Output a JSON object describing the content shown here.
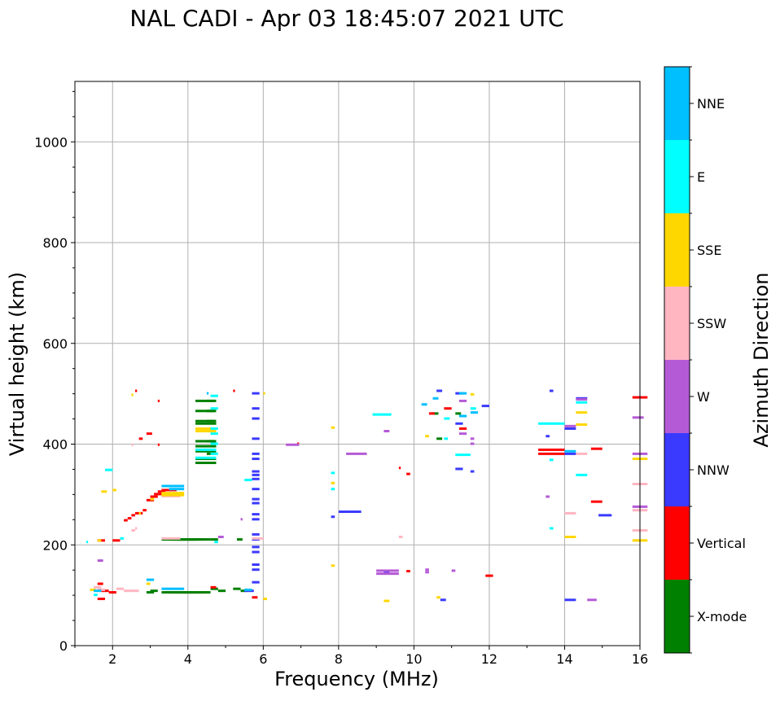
{
  "chart_data": {
    "type": "scatter",
    "title": "NAL CADI - Apr 03 18:45:07 2021 UTC",
    "xlabel": "Frequency (MHz)",
    "ylabel": "Virtual height (km)",
    "xlim": [
      1,
      16
    ],
    "ylim": [
      0,
      1120
    ],
    "xticks": [
      2,
      4,
      6,
      8,
      10,
      12,
      14,
      16
    ],
    "yticks": [
      0,
      200,
      400,
      600,
      800,
      1000
    ],
    "grid": true,
    "colorbar": {
      "label": "Azimuth Direction",
      "categories": [
        "X-mode",
        "Vertical",
        "NNW",
        "W",
        "SSW",
        "SSE",
        "E",
        "NNE"
      ],
      "colors": [
        "#008000",
        "#ff0000",
        "#3a3aff",
        "#b55ad6",
        "#ffb6c1",
        "#ffd700",
        "#00ffff",
        "#00bfff"
      ]
    },
    "series": [
      {
        "name": "X-mode",
        "points": [
          [
            3.3,
            105,
            0.8
          ],
          [
            3.4,
            105,
            0.8
          ],
          [
            3.5,
            105,
            0.8
          ],
          [
            3.6,
            105,
            0.8
          ],
          [
            3.7,
            105,
            0.8
          ],
          [
            3.8,
            105,
            0.8
          ],
          [
            3.3,
            210,
            0.8
          ],
          [
            3.4,
            210,
            0.8
          ],
          [
            3.5,
            210,
            0.8
          ],
          [
            3.6,
            210,
            0.8
          ],
          [
            3.7,
            210,
            0.8
          ],
          [
            3.8,
            210,
            0.8
          ],
          [
            4.2,
            485,
            0.55
          ],
          [
            4.2,
            465,
            0.55
          ],
          [
            4.2,
            445,
            0.55
          ],
          [
            4.2,
            440,
            0.55
          ],
          [
            4.2,
            405,
            0.55
          ],
          [
            4.2,
            395,
            0.55
          ],
          [
            4.2,
            385,
            0.55
          ],
          [
            4.2,
            370,
            0.55
          ],
          [
            4.2,
            362,
            0.55
          ],
          [
            4.5,
            485,
            0.2
          ],
          [
            4.5,
            465,
            0.2
          ],
          [
            4.5,
            445,
            0.2
          ],
          [
            4.5,
            405,
            0.2
          ],
          [
            4.5,
            380,
            0.2
          ],
          [
            4.6,
            112,
            0.2
          ],
          [
            4.6,
            210,
            0.2
          ],
          [
            4.8,
            108,
            0.2
          ],
          [
            5.2,
            112,
            0.2
          ],
          [
            5.4,
            108,
            0.15
          ],
          [
            5.3,
            210,
            0.15
          ],
          [
            2.9,
            105,
            0.2
          ],
          [
            3.0,
            108,
            0.2
          ],
          [
            10.5,
            460,
            0.15
          ],
          [
            10.6,
            410,
            0.15
          ],
          [
            11.1,
            460,
            0.15
          ]
        ]
      },
      {
        "name": "Vertical",
        "points": [
          [
            1.6,
            92,
            0.2
          ],
          [
            1.6,
            122,
            0.15
          ],
          [
            1.7,
            108,
            0.2
          ],
          [
            1.9,
            105,
            0.2
          ],
          [
            2.0,
            208,
            0.2
          ],
          [
            1.6,
            208,
            0.2
          ],
          [
            2.3,
            248,
            0.1
          ],
          [
            2.4,
            252,
            0.1
          ],
          [
            2.5,
            258,
            0.1
          ],
          [
            2.6,
            262,
            0.1
          ],
          [
            2.7,
            262,
            0.1
          ],
          [
            2.8,
            268,
            0.1
          ],
          [
            2.9,
            288,
            0.2
          ],
          [
            3.0,
            295,
            0.2
          ],
          [
            3.1,
            300,
            0.2
          ],
          [
            3.2,
            305,
            0.2
          ],
          [
            3.3,
            308,
            0.4
          ],
          [
            2.9,
            420,
            0.15
          ],
          [
            2.7,
            410,
            0.1
          ],
          [
            3.2,
            485,
            0.05
          ],
          [
            3.2,
            398,
            0.05
          ],
          [
            2.6,
            505,
            0.05
          ],
          [
            4.6,
            115,
            0.15
          ],
          [
            5.2,
            505,
            0.05
          ],
          [
            5.7,
            95,
            0.15
          ],
          [
            6.9,
            400,
            0.05
          ],
          [
            9.6,
            352,
            0.05
          ],
          [
            9.8,
            340,
            0.1
          ],
          [
            9.8,
            147,
            0.1
          ],
          [
            10.4,
            460,
            0.15
          ],
          [
            10.8,
            470,
            0.2
          ],
          [
            11.2,
            430,
            0.2
          ],
          [
            11.9,
            138,
            0.2
          ],
          [
            13.3,
            380,
            0.7
          ],
          [
            13.3,
            388,
            0.7
          ],
          [
            14.7,
            285,
            0.3
          ],
          [
            14.7,
            390,
            0.3
          ],
          [
            15.8,
            492,
            0.4
          ]
        ]
      },
      {
        "name": "NNW",
        "points": [
          [
            5.7,
            500,
            0.2
          ],
          [
            5.7,
            470,
            0.2
          ],
          [
            5.7,
            450,
            0.2
          ],
          [
            5.7,
            410,
            0.2
          ],
          [
            5.7,
            380,
            0.2
          ],
          [
            5.7,
            370,
            0.2
          ],
          [
            5.7,
            345,
            0.2
          ],
          [
            5.7,
            338,
            0.2
          ],
          [
            5.7,
            330,
            0.2
          ],
          [
            5.7,
            310,
            0.2
          ],
          [
            5.7,
            290,
            0.2
          ],
          [
            5.7,
            282,
            0.2
          ],
          [
            5.7,
            260,
            0.2
          ],
          [
            5.7,
            250,
            0.2
          ],
          [
            5.7,
            220,
            0.2
          ],
          [
            5.7,
            210,
            0.2
          ],
          [
            5.7,
            195,
            0.2
          ],
          [
            5.7,
            185,
            0.2
          ],
          [
            5.7,
            160,
            0.2
          ],
          [
            5.7,
            150,
            0.2
          ],
          [
            5.7,
            125,
            0.2
          ],
          [
            5.5,
            108,
            0.25
          ],
          [
            8.0,
            265,
            0.6
          ],
          [
            7.8,
            255,
            0.1
          ],
          [
            9.2,
            145,
            0.15
          ],
          [
            10.6,
            505,
            0.15
          ],
          [
            10.7,
            90,
            0.15
          ],
          [
            11.1,
            500,
            0.2
          ],
          [
            11.1,
            440,
            0.2
          ],
          [
            11.1,
            350,
            0.2
          ],
          [
            11.5,
            345,
            0.1
          ],
          [
            11.8,
            475,
            0.2
          ],
          [
            14.0,
            430,
            0.3
          ],
          [
            14.0,
            380,
            0.3
          ],
          [
            14.0,
            90,
            0.3
          ],
          [
            14.3,
            490,
            0.3
          ],
          [
            14.9,
            258,
            0.35
          ],
          [
            13.6,
            505,
            0.1
          ],
          [
            13.5,
            415,
            0.1
          ]
        ]
      },
      {
        "name": "W",
        "points": [
          [
            1.6,
            168,
            0.15
          ],
          [
            4.8,
            215,
            0.15
          ],
          [
            5.4,
            250,
            0.05
          ],
          [
            6.6,
            398,
            0.35
          ],
          [
            8.2,
            380,
            0.55
          ],
          [
            9.0,
            148,
            0.6
          ],
          [
            9.0,
            142,
            0.6
          ],
          [
            9.2,
            425,
            0.15
          ],
          [
            10.3,
            145,
            0.1
          ],
          [
            10.3,
            150,
            0.1
          ],
          [
            11.0,
            148,
            0.1
          ],
          [
            11.2,
            485,
            0.2
          ],
          [
            11.2,
            420,
            0.2
          ],
          [
            11.5,
            410,
            0.1
          ],
          [
            11.5,
            400,
            0.1
          ],
          [
            13.5,
            295,
            0.1
          ],
          [
            14.0,
            435,
            0.3
          ],
          [
            14.3,
            488,
            0.3
          ],
          [
            14.6,
            90,
            0.25
          ],
          [
            15.8,
            380,
            0.4
          ],
          [
            15.8,
            275,
            0.4
          ],
          [
            15.8,
            452,
            0.3
          ]
        ]
      },
      {
        "name": "SSW",
        "points": [
          [
            1.5,
            115,
            0.2
          ],
          [
            1.6,
            110,
            0.2
          ],
          [
            2.1,
            112,
            0.2
          ],
          [
            2.3,
            108,
            0.2
          ],
          [
            2.5,
            108,
            0.2
          ],
          [
            2.5,
            228,
            0.1
          ],
          [
            2.6,
            232,
            0.05
          ],
          [
            2.5,
            398,
            0.05
          ],
          [
            3.3,
            300,
            0.5
          ],
          [
            3.3,
            296,
            0.5
          ],
          [
            3.3,
            212,
            0.5
          ],
          [
            5.7,
            212,
            0.3
          ],
          [
            9.6,
            215,
            0.1
          ],
          [
            14.0,
            262,
            0.3
          ],
          [
            14.3,
            380,
            0.3
          ],
          [
            15.8,
            320,
            0.4
          ],
          [
            15.8,
            228,
            0.4
          ],
          [
            15.8,
            268,
            0.4
          ]
        ]
      },
      {
        "name": "SSE",
        "points": [
          [
            1.4,
            110,
            0.15
          ],
          [
            1.6,
            208,
            0.1
          ],
          [
            1.7,
            305,
            0.15
          ],
          [
            2.0,
            308,
            0.1
          ],
          [
            2.5,
            497,
            0.05
          ],
          [
            2.7,
            262,
            0.05
          ],
          [
            2.9,
            122,
            0.1
          ],
          [
            3.0,
            290,
            0.1
          ],
          [
            3.3,
            302,
            0.6
          ],
          [
            3.3,
            298,
            0.6
          ],
          [
            4.2,
            430,
            0.55
          ],
          [
            4.2,
            425,
            0.55
          ],
          [
            6.0,
            92,
            0.1
          ],
          [
            6.0,
            500,
            0.05
          ],
          [
            7.8,
            322,
            0.1
          ],
          [
            7.8,
            158,
            0.1
          ],
          [
            7.8,
            432,
            0.1
          ],
          [
            9.2,
            88,
            0.15
          ],
          [
            10.3,
            415,
            0.1
          ],
          [
            10.6,
            95,
            0.1
          ],
          [
            11.5,
            498,
            0.1
          ],
          [
            14.0,
            215,
            0.3
          ],
          [
            14.3,
            462,
            0.3
          ],
          [
            14.3,
            438,
            0.3
          ],
          [
            15.8,
            370,
            0.4
          ],
          [
            15.8,
            208,
            0.4
          ]
        ]
      },
      {
        "name": "E",
        "points": [
          [
            1.3,
            205,
            0.05
          ],
          [
            1.5,
            100,
            0.1
          ],
          [
            1.8,
            348,
            0.2
          ],
          [
            2.2,
            212,
            0.1
          ],
          [
            4.2,
            372,
            0.55
          ],
          [
            4.2,
            388,
            0.55
          ],
          [
            4.6,
            380,
            0.2
          ],
          [
            4.6,
            400,
            0.2
          ],
          [
            4.6,
            420,
            0.2
          ],
          [
            4.6,
            430,
            0.2
          ],
          [
            4.6,
            470,
            0.2
          ],
          [
            4.6,
            495,
            0.2
          ],
          [
            4.7,
            205,
            0.1
          ],
          [
            5.5,
            328,
            0.2
          ],
          [
            7.8,
            342,
            0.1
          ],
          [
            7.8,
            310,
            0.1
          ],
          [
            8.9,
            458,
            0.5
          ],
          [
            10.8,
            410,
            0.1
          ],
          [
            10.8,
            450,
            0.15
          ],
          [
            11.1,
            378,
            0.4
          ],
          [
            11.5,
            470,
            0.15
          ],
          [
            13.3,
            440,
            0.7
          ],
          [
            13.6,
            368,
            0.1
          ],
          [
            13.6,
            232,
            0.1
          ],
          [
            14.3,
            338,
            0.3
          ],
          [
            14.3,
            482,
            0.3
          ]
        ]
      },
      {
        "name": "NNE",
        "points": [
          [
            1.5,
            108,
            0.2
          ],
          [
            2.9,
            130,
            0.2
          ],
          [
            3.3,
            112,
            0.6
          ],
          [
            3.3,
            316,
            0.6
          ],
          [
            3.5,
            310,
            0.4
          ],
          [
            4.5,
            500,
            0.05
          ],
          [
            5.5,
            110,
            0.2
          ],
          [
            10.2,
            478,
            0.15
          ],
          [
            10.5,
            490,
            0.15
          ],
          [
            11.2,
            500,
            0.2
          ],
          [
            11.2,
            455,
            0.2
          ],
          [
            11.5,
            462,
            0.2
          ],
          [
            14.0,
            385,
            0.3
          ]
        ]
      }
    ]
  }
}
